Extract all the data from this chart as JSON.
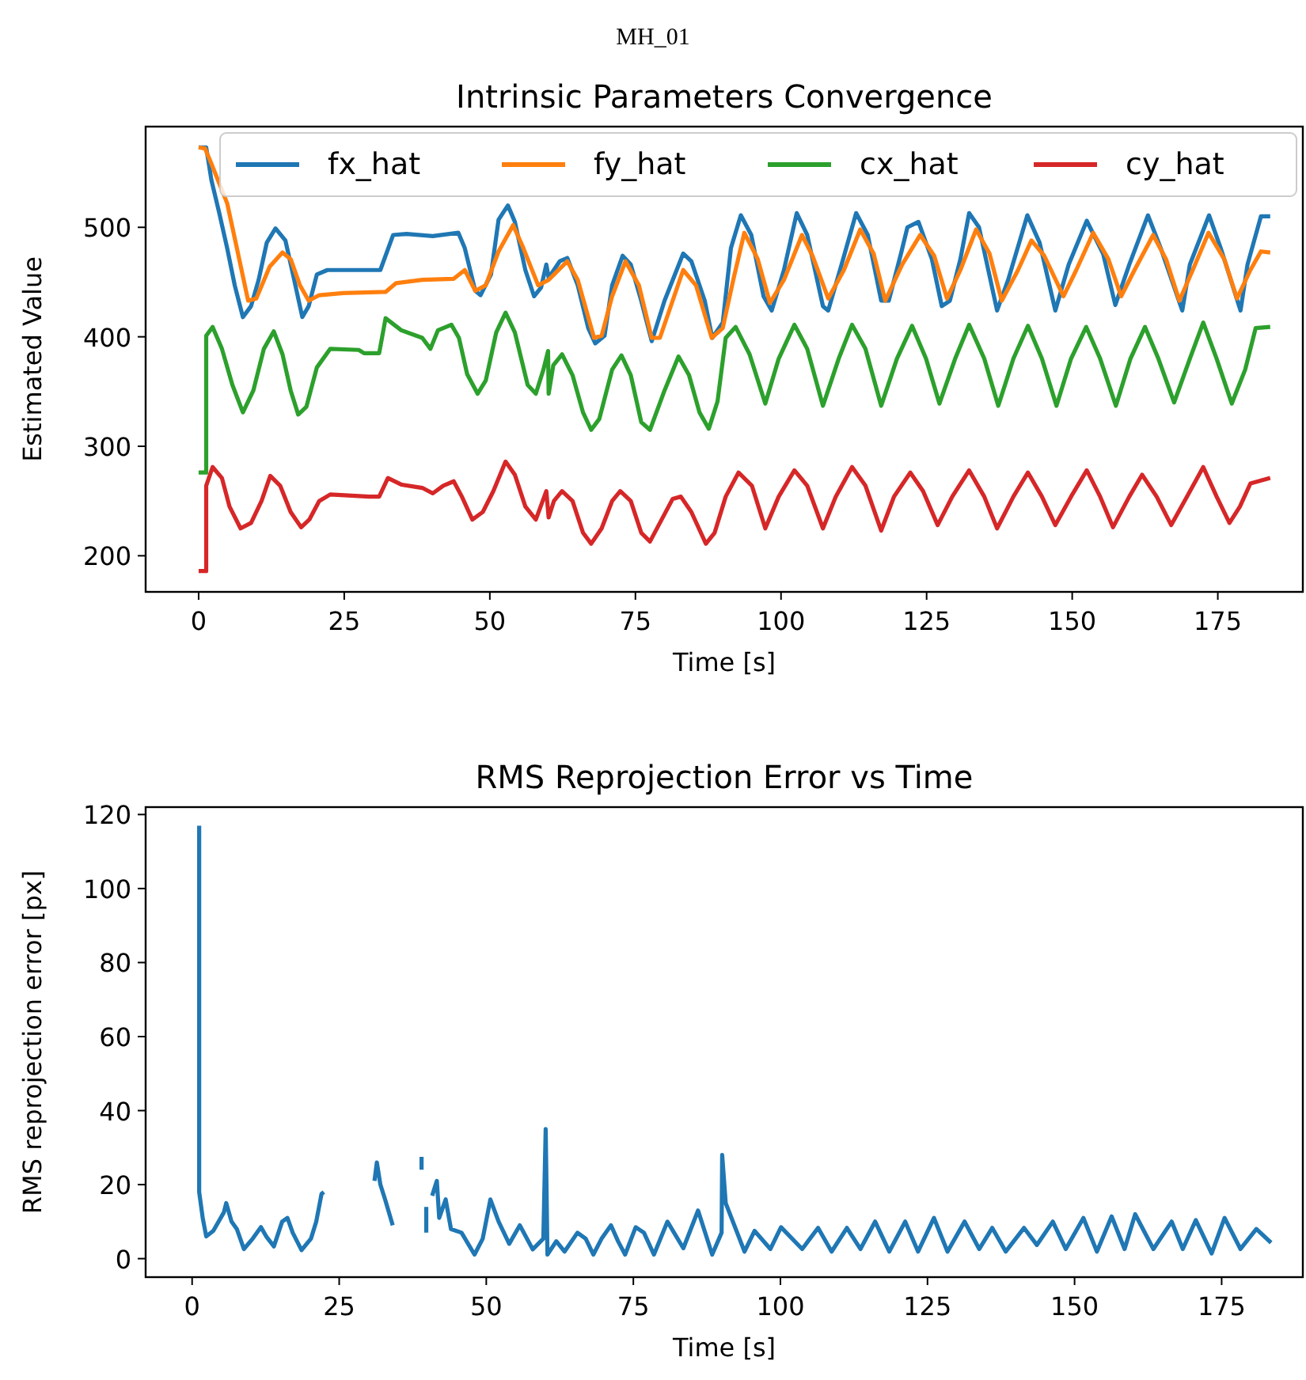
{
  "chart_data": [
    {
      "type": "other",
      "title": "MH_01"
    },
    {
      "type": "line",
      "title": "Intrinsic Parameters Convergence",
      "xlabel": "Time [s]",
      "ylabel": "Estimated Value",
      "xlim": [
        -9.1,
        189.6
      ],
      "ylim": [
        167,
        592
      ],
      "xticks": [
        0,
        25,
        50,
        75,
        100,
        125,
        150,
        175
      ],
      "yticks": [
        200,
        300,
        400,
        500
      ],
      "legend": "top right",
      "series": [
        {
          "name": "fx_hat",
          "color": "#1f77b4",
          "x": [
            0,
            1.3,
            2.2,
            3.5,
            4.9,
            6.2,
            7.6,
            9,
            10.3,
            11.7,
            13.2,
            14.9,
            16.2,
            17.8,
            18.9,
            20.3,
            22.1,
            31.2,
            33.4,
            35.7,
            40.2,
            44.6,
            45.7,
            47.5,
            48.4,
            50.2,
            51.5,
            53.1,
            54.3,
            56.1,
            57.6,
            58.8,
            59.7,
            60.1,
            62,
            63.3,
            65.1,
            66.9,
            68.1,
            69.7,
            71,
            72.8,
            74.2,
            76,
            77.8,
            80,
            83.2,
            84.6,
            86.9,
            88.2,
            90,
            91.4,
            93.1,
            94.9,
            97,
            98.4,
            100.5,
            102.7,
            104.5,
            107.2,
            108.1,
            110.4,
            112.9,
            114.9,
            117.2,
            118.5,
            120.6,
            121.7,
            123.6,
            125.9,
            127.6,
            129,
            130.8,
            132.3,
            134,
            137.1,
            139,
            142.3,
            144.4,
            147.1,
            149.4,
            152.5,
            155.3,
            157.4,
            159.8,
            163,
            165.2,
            168.9,
            170.2,
            173.5,
            175.5,
            178.9,
            180.1,
            182.4,
            184
          ],
          "values": [
            573,
            573,
            543,
            514,
            481,
            447,
            418,
            428,
            452,
            486,
            499,
            488,
            457,
            418,
            428,
            457,
            461,
            461,
            493,
            494,
            492,
            495,
            481,
            442,
            438,
            457,
            507,
            520,
            505,
            461,
            437,
            445,
            466,
            454,
            469,
            472,
            447,
            408,
            394,
            401,
            447,
            474,
            466,
            433,
            396,
            433,
            476,
            469,
            433,
            399,
            413,
            481,
            511,
            493,
            437,
            424,
            461,
            513,
            493,
            428,
            424,
            466,
            513,
            493,
            433,
            433,
            476,
            500,
            505,
            471,
            428,
            433,
            471,
            513,
            500,
            424,
            452,
            511,
            486,
            424,
            466,
            506,
            476,
            429,
            466,
            511,
            481,
            424,
            466,
            511,
            481,
            424,
            466,
            510,
            510
          ]
        },
        {
          "name": "fy_hat",
          "color": "#ff7f0e",
          "x": [
            0,
            1.1,
            2.2,
            4.9,
            6.2,
            8.5,
            9.9,
            12.2,
            14.4,
            15.8,
            17.4,
            18.9,
            20.7,
            24.8,
            32.1,
            33.9,
            38.4,
            43.8,
            45.7,
            47.5,
            49.3,
            51.5,
            54,
            55.6,
            58.3,
            60.1,
            63.3,
            65.1,
            67.9,
            69.2,
            71,
            73.3,
            75.6,
            77.8,
            79.2,
            83.2,
            85.4,
            88.1,
            90,
            91.8,
            93.7,
            96,
            98.1,
            100.5,
            103.6,
            105.4,
            108.1,
            110.8,
            113.6,
            115.9,
            117.9,
            120.8,
            123.9,
            126.3,
            128.5,
            130.8,
            133.5,
            135.8,
            137.9,
            140.7,
            143,
            145.2,
            148.5,
            150.7,
            153.6,
            156.2,
            158.4,
            160.7,
            163.9,
            166.1,
            168.4,
            170.7,
            173.4,
            176.1,
            178.3,
            180.6,
            182.4,
            184
          ],
          "values": [
            573,
            572,
            558,
            522,
            490,
            433,
            435,
            464,
            477,
            471,
            447,
            433,
            438,
            440,
            441,
            449,
            452,
            453,
            461,
            442,
            447,
            478,
            502,
            483,
            447,
            452,
            469,
            452,
            399,
            401,
            437,
            469,
            447,
            399,
            399,
            461,
            447,
            399,
            408,
            452,
            495,
            471,
            431,
            452,
            493,
            474,
            435,
            461,
            498,
            476,
            433,
            466,
            493,
            474,
            435,
            461,
            498,
            476,
            433,
            461,
            488,
            474,
            437,
            461,
            495,
            471,
            437,
            461,
            493,
            471,
            433,
            461,
            495,
            471,
            435,
            461,
            478,
            477
          ]
        },
        {
          "name": "cx_hat",
          "color": "#2ca02c",
          "x": [
            0,
            1.3,
            1.3,
            2.4,
            4,
            5.8,
            7.6,
            9.4,
            11.2,
            12.9,
            14.4,
            15.8,
            17.1,
            18.5,
            20.3,
            22.6,
            27.5,
            28.4,
            31,
            32.1,
            34.8,
            38.4,
            39.8,
            41.1,
            43.4,
            44.7,
            46.1,
            47.9,
            49.3,
            51.1,
            52.7,
            54.3,
            56.5,
            57.9,
            59.2,
            60,
            60.1,
            60.9,
            62.4,
            64.2,
            66,
            67.4,
            68.8,
            71,
            72.6,
            74.2,
            76,
            77.5,
            80,
            82.4,
            84.2,
            86,
            87.6,
            89.1,
            90.5,
            92.2,
            94.6,
            97.3,
            99.6,
            102.3,
            104.5,
            107.2,
            109.9,
            112.2,
            114.5,
            117.2,
            119.9,
            122.5,
            124.9,
            127.2,
            129.9,
            132.3,
            134.9,
            137.3,
            139.9,
            142.4,
            144.8,
            147.3,
            149.8,
            152.4,
            154.8,
            157.5,
            160,
            162.5,
            164.8,
            167.5,
            170.2,
            172.5,
            174.8,
            177.4,
            179.7,
            181.5,
            184
          ],
          "values": [
            276,
            276,
            401,
            409,
            389,
            356,
            331,
            351,
            389,
            405,
            384,
            351,
            329,
            336,
            372,
            389,
            388,
            385,
            385,
            417,
            406,
            399,
            389,
            406,
            411,
            399,
            366,
            348,
            360,
            404,
            422,
            404,
            356,
            348,
            370,
            387,
            348,
            374,
            384,
            365,
            331,
            315,
            325,
            370,
            383,
            365,
            322,
            315,
            351,
            382,
            365,
            331,
            316,
            341,
            399,
            409,
            384,
            339,
            380,
            411,
            389,
            337,
            380,
            411,
            389,
            337,
            380,
            410,
            380,
            339,
            380,
            411,
            380,
            337,
            380,
            410,
            380,
            337,
            380,
            409,
            380,
            337,
            380,
            409,
            380,
            340,
            380,
            413,
            380,
            339,
            370,
            408,
            409
          ]
        },
        {
          "name": "cy_hat",
          "color": "#d62728",
          "x": [
            0,
            1.3,
            1.3,
            2.4,
            4,
            5.3,
            7.2,
            9,
            10.8,
            12.3,
            14,
            15.8,
            17.6,
            19,
            20.7,
            22.6,
            29.3,
            31,
            32.5,
            34.8,
            38.4,
            40.2,
            42,
            43.8,
            45.2,
            47,
            48.8,
            50.6,
            52.7,
            54.3,
            56.1,
            57.9,
            59.7,
            60.1,
            61,
            62.4,
            64.2,
            66,
            67.4,
            69.2,
            71,
            72.4,
            74.2,
            76,
            77.5,
            81.4,
            82.8,
            84.6,
            87.1,
            88.6,
            90.5,
            92.7,
            95,
            97.3,
            99.6,
            102.3,
            104.5,
            107.2,
            109.4,
            112.2,
            114.5,
            117.2,
            119.4,
            122.2,
            124.4,
            126.9,
            129.4,
            132.3,
            134.9,
            137.1,
            139.9,
            142.4,
            144.8,
            147.1,
            149.8,
            152.5,
            154.8,
            157,
            159.8,
            162,
            164.5,
            167,
            169.7,
            172.5,
            174.8,
            177,
            178.8,
            180.6,
            184
          ],
          "values": [
            186,
            186,
            264,
            281,
            271,
            245,
            225,
            230,
            250,
            273,
            264,
            240,
            226,
            233,
            250,
            256,
            254,
            254,
            271,
            265,
            262,
            257,
            264,
            268,
            254,
            233,
            240,
            259,
            286,
            274,
            245,
            233,
            259,
            235,
            250,
            259,
            250,
            221,
            211,
            225,
            250,
            259,
            250,
            221,
            213,
            252,
            254,
            240,
            211,
            221,
            254,
            276,
            264,
            225,
            254,
            278,
            264,
            225,
            254,
            281,
            264,
            223,
            254,
            276,
            259,
            228,
            254,
            278,
            254,
            225,
            254,
            276,
            254,
            228,
            254,
            278,
            254,
            226,
            254,
            274,
            254,
            228,
            254,
            281,
            254,
            230,
            245,
            266,
            271
          ]
        }
      ]
    },
    {
      "type": "line",
      "title": "RMS Reprojection Error vs Time",
      "xlabel": "Time [s]",
      "ylabel": "RMS reprojection error [px]",
      "xlim": [
        -7.9,
        188.8
      ],
      "ylim": [
        -5,
        122
      ],
      "xticks": [
        0,
        25,
        50,
        75,
        100,
        125,
        150,
        175
      ],
      "yticks": [
        0,
        20,
        40,
        60,
        80,
        100,
        120
      ],
      "series": [
        {
          "color": "#1f77b4",
          "x": [
            1.2,
            1.2,
            1.8,
            2.4,
            3.6,
            5.4,
            5.8,
            6.7,
            7.6,
            8.8,
            10.3,
            11.7,
            12.6,
            13.9,
            15.3,
            16.2,
            17.1,
            18.6,
            20.2,
            21.1,
            22,
            22.4,
            26,
            31,
            31.4,
            32,
            32.8,
            34.1,
            36.5,
            39,
            39,
            39.4,
            39.8,
            39.8,
            40.3,
            40.8,
            41.6,
            42,
            43.1,
            44,
            45.8,
            48,
            49.4,
            50.7,
            52.1,
            53.9,
            55.7,
            57.9,
            59.7,
            60.1,
            60.4,
            61.9,
            63.3,
            65.5,
            66.9,
            68.2,
            69.6,
            71.2,
            72.4,
            73.6,
            75.4,
            76.8,
            78.5,
            80.8,
            83.5,
            86,
            88.4,
            90,
            90.1,
            90.7,
            93.9,
            95.6,
            98.3,
            100.1,
            103.7,
            106.4,
            108.7,
            111.3,
            113.6,
            116.1,
            118.5,
            121.2,
            123.4,
            126.1,
            128.4,
            131.3,
            133.8,
            136,
            138.3,
            141.4,
            143.6,
            146.3,
            148.5,
            151.5,
            153.8,
            156.3,
            158.5,
            160.3,
            163.4,
            166.5,
            168.4,
            170.6,
            173.3,
            175.5,
            178.2,
            180.9,
            183.4
          ],
          "values": [
            117,
            18,
            11,
            6,
            7.5,
            12.5,
            15,
            10,
            8,
            2.6,
            5.4,
            8.5,
            6,
            3.3,
            10,
            11,
            7,
            2.3,
            5.4,
            10,
            17.5,
            18,
            null,
            21,
            26,
            20,
            16,
            9,
            null,
            27.5,
            24,
            null,
            14,
            7,
            null,
            17,
            21,
            11,
            16,
            8,
            7,
            1.1,
            5.4,
            16,
            10,
            4,
            9,
            2.5,
            5.4,
            35,
            1.1,
            4.7,
            1.9,
            7,
            5.4,
            1.1,
            5.4,
            9,
            4.7,
            1.1,
            8.5,
            7,
            1.1,
            10,
            2.8,
            13,
            1.1,
            7,
            28,
            15,
            1.9,
            7.5,
            2.6,
            8.5,
            2.6,
            8.3,
            1.9,
            8.3,
            2.6,
            10,
            1.9,
            10,
            1.9,
            11,
            1.9,
            10,
            2.6,
            8.3,
            1.9,
            8.3,
            3.7,
            10,
            2.6,
            11,
            1.9,
            11.4,
            2.6,
            12,
            2.6,
            10,
            2.6,
            10.4,
            1.4,
            11,
            2.6,
            8,
            4.3
          ]
        }
      ]
    }
  ]
}
